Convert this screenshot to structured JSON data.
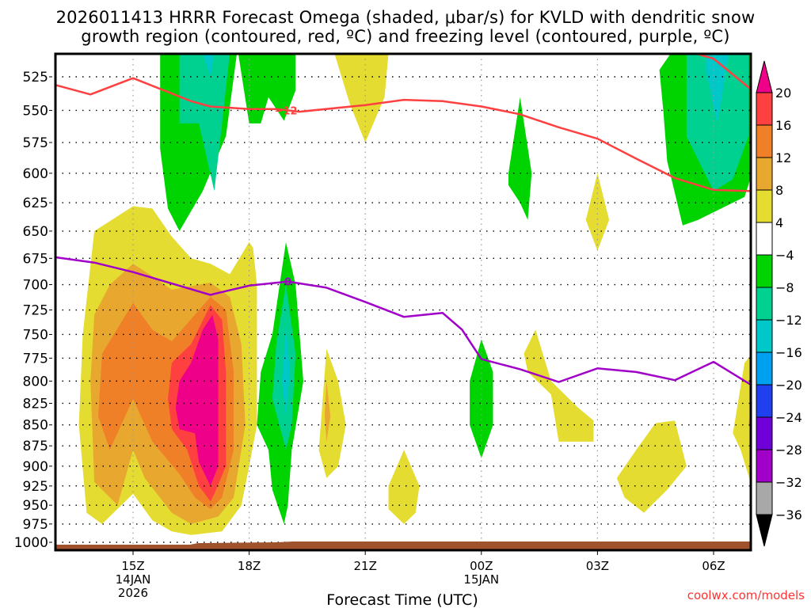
{
  "chart_data": {
    "type": "heatmap",
    "title_line1": "2026011413 HRRR Forecast Omega (shaded, μbar/s) for KVLD with dendritic snow",
    "title_line2": "growth region (contoured, red, ºC) and freezing level (contoured, purple, ºC)",
    "xlabel": "Forecast Time (UTC)",
    "ylabel": "",
    "x_range_hours_from_15Z": [
      -2,
      16
    ],
    "x_ticks": [
      {
        "hour": 0,
        "label": "15Z",
        "sub1": "14JAN",
        "sub2": "2026"
      },
      {
        "hour": 3,
        "label": "18Z",
        "sub1": "",
        "sub2": ""
      },
      {
        "hour": 6,
        "label": "21Z",
        "sub1": "",
        "sub2": ""
      },
      {
        "hour": 9,
        "label": "00Z",
        "sub1": "15JAN",
        "sub2": ""
      },
      {
        "hour": 12,
        "label": "03Z",
        "sub1": "",
        "sub2": ""
      },
      {
        "hour": 15,
        "label": "06Z",
        "sub1": "",
        "sub2": ""
      }
    ],
    "y_ticks": [
      525,
      550,
      575,
      600,
      625,
      650,
      675,
      700,
      725,
      750,
      775,
      800,
      825,
      850,
      875,
      900,
      925,
      950,
      975,
      1000
    ],
    "y_range_hPa": [
      508,
      1012
    ],
    "grid": true,
    "colorbar": {
      "levels": [
        "20",
        "16",
        "12",
        "8",
        "4",
        "−4",
        "−8",
        "−12",
        "−16",
        "−20",
        "−24",
        "−28",
        "−32",
        "−36"
      ],
      "colors": [
        "#ee0088",
        "#ff4040",
        "#f08028",
        "#e8a830",
        "#e4dc30",
        "#ffffff",
        "#00d400",
        "#00d090",
        "#00c8c8",
        "#00a0f0",
        "#2040f0",
        "#7000d8",
        "#a000c8",
        "#a8a8a8",
        "#000000"
      ],
      "placement": "right"
    },
    "dgz_contour": {
      "label": "−12",
      "color": "#ff4040",
      "points": [
        [
          -2,
          531
        ],
        [
          -1.1,
          538
        ],
        [
          0,
          526
        ],
        [
          1.5,
          543
        ],
        [
          2,
          547
        ],
        [
          3,
          549
        ],
        [
          3.7,
          549
        ],
        [
          4.3,
          551
        ],
        [
          6,
          546
        ],
        [
          7,
          542
        ],
        [
          8,
          543
        ],
        [
          9,
          547
        ],
        [
          10,
          553
        ],
        [
          11,
          563
        ],
        [
          12,
          572
        ],
        [
          13,
          588
        ],
        [
          14,
          604
        ],
        [
          15,
          614
        ],
        [
          16,
          615
        ]
      ],
      "upper_points": [
        [
          14.5,
          508
        ],
        [
          15,
          512
        ],
        [
          16,
          535
        ]
      ]
    },
    "freezing_contour": {
      "label": "0",
      "color": "#a000c8",
      "points": [
        [
          -2,
          674
        ],
        [
          -1,
          679
        ],
        [
          0,
          688
        ],
        [
          2,
          710
        ],
        [
          2.1,
          709
        ],
        [
          3,
          701
        ],
        [
          4,
          697
        ],
        [
          5,
          703
        ],
        [
          6,
          717
        ],
        [
          7,
          732
        ],
        [
          8,
          728
        ],
        [
          8.5,
          745
        ],
        [
          9,
          776
        ],
        [
          10,
          787
        ],
        [
          11,
          801
        ],
        [
          12,
          786
        ],
        [
          13,
          790
        ],
        [
          14,
          799
        ],
        [
          15,
          779
        ],
        [
          16,
          805
        ]
      ]
    },
    "terrain": {
      "color": "#a0522d",
      "surface_hPa_start": 1000,
      "surface_hPa_end": 1003
    },
    "omega_regions": [
      {
        "level": "4 to 8",
        "color": "#e4dc30",
        "area": "14Z-17Z, 625-975 hPa"
      },
      {
        "level": "8 to 12",
        "color": "#e8a830",
        "area": "14Z-17Z, 680-960 hPa"
      },
      {
        "level": "12 to 16",
        "color": "#f08028",
        "area": "14Z-17Z, 700-950 hPa"
      },
      {
        "level": "16 to 20",
        "color": "#ff4040",
        "area": "16Z-17Z, 720-945 hPa"
      },
      {
        "level": ">20",
        "color": "#ee0088",
        "area": "16.5Z-17Z, 740-925 hPa"
      },
      {
        "level": "-4 to -8",
        "color": "#00d400",
        "area": "16Z-18.5Z 508-640 hPa; 18.5Z-19.5Z 650-975 hPa; 00Z 760-890 hPa; 01Z 565-630 hPa; 04.5Z-07Z 508-640 hPa"
      },
      {
        "level": "-8 to -12",
        "color": "#00d090",
        "area": "16.5Z-17.5Z 508-620 hPa; 19Z 690-880 hPa; 05Z-07Z 508-600 hPa"
      },
      {
        "level": "-12 to -16",
        "color": "#00c8c8",
        "area": "17Z 508-525 hPa; 19Z 720-830 hPa; 06Z 508-570 hPa"
      }
    ]
  },
  "credit": "coolwx.com/models"
}
